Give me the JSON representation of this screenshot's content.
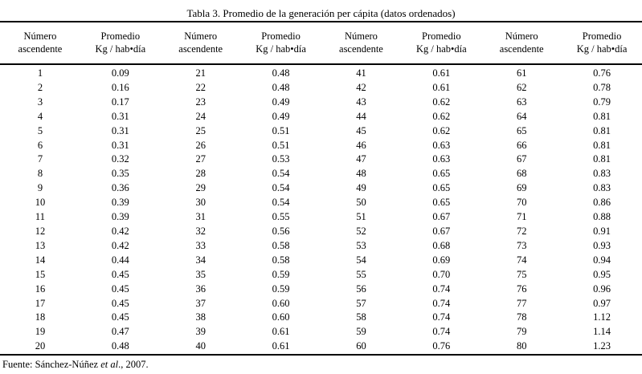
{
  "title": "Tabla 3. Promedio de la generación per cápita (datos ordenados)",
  "table": {
    "column_headers": [
      {
        "line1": "Número",
        "line2": "ascendente"
      },
      {
        "line1": "Promedio",
        "line2": "Kg / hab•día"
      },
      {
        "line1": "Número",
        "line2": "ascendente"
      },
      {
        "line1": "Promedio",
        "line2": "Kg / hab•día"
      },
      {
        "line1": "Número",
        "line2": "ascendente"
      },
      {
        "line1": "Promedio",
        "line2": "Kg / hab•día"
      },
      {
        "line1": "Número",
        "line2": "ascendente"
      },
      {
        "line1": "Promedio",
        "line2": "Kg / hab•día"
      }
    ],
    "rows": [
      [
        "1",
        "0.09",
        "21",
        "0.48",
        "41",
        "0.61",
        "61",
        "0.76"
      ],
      [
        "2",
        "0.16",
        "22",
        "0.48",
        "42",
        "0.61",
        "62",
        "0.78"
      ],
      [
        "3",
        "0.17",
        "23",
        "0.49",
        "43",
        "0.62",
        "63",
        "0.79"
      ],
      [
        "4",
        "0.31",
        "24",
        "0.49",
        "44",
        "0.62",
        "64",
        "0.81"
      ],
      [
        "5",
        "0.31",
        "25",
        "0.51",
        "45",
        "0.62",
        "65",
        "0.81"
      ],
      [
        "6",
        "0.31",
        "26",
        "0.51",
        "46",
        "0.63",
        "66",
        "0.81"
      ],
      [
        "7",
        "0.32",
        "27",
        "0.53",
        "47",
        "0.63",
        "67",
        "0.81"
      ],
      [
        "8",
        "0.35",
        "28",
        "0.54",
        "48",
        "0.65",
        "68",
        "0.83"
      ],
      [
        "9",
        "0.36",
        "29",
        "0.54",
        "49",
        "0.65",
        "69",
        "0.83"
      ],
      [
        "10",
        "0.39",
        "30",
        "0.54",
        "50",
        "0.65",
        "70",
        "0.86"
      ],
      [
        "11",
        "0.39",
        "31",
        "0.55",
        "51",
        "0.67",
        "71",
        "0.88"
      ],
      [
        "12",
        "0.42",
        "32",
        "0.56",
        "52",
        "0.67",
        "72",
        "0.91"
      ],
      [
        "13",
        "0.42",
        "33",
        "0.58",
        "53",
        "0.68",
        "73",
        "0.93"
      ],
      [
        "14",
        "0.44",
        "34",
        "0.58",
        "54",
        "0.69",
        "74",
        "0.94"
      ],
      [
        "15",
        "0.45",
        "35",
        "0.59",
        "55",
        "0.70",
        "75",
        "0.95"
      ],
      [
        "16",
        "0.45",
        "36",
        "0.59",
        "56",
        "0.74",
        "76",
        "0.96"
      ],
      [
        "17",
        "0.45",
        "37",
        "0.60",
        "57",
        "0.74",
        "77",
        "0.97"
      ],
      [
        "18",
        "0.45",
        "38",
        "0.60",
        "58",
        "0.74",
        "78",
        "1.12"
      ],
      [
        "19",
        "0.47",
        "39",
        "0.61",
        "59",
        "0.74",
        "79",
        "1.14"
      ],
      [
        "20",
        "0.48",
        "40",
        "0.61",
        "60",
        "0.76",
        "80",
        "1.23"
      ]
    ]
  },
  "footer": {
    "prefix": "Fuente: Sánchez-Núñez ",
    "italic": "et al",
    "suffix": "., 2007."
  }
}
